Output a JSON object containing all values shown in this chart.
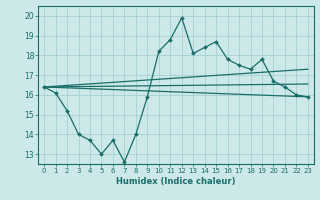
{
  "xlabel": "Humidex (Indice chaleur)",
  "bg_color": "#cce8e8",
  "grid_color": "#aad4d4",
  "line_color": "#1a6e6a",
  "x_values": [
    0,
    1,
    2,
    3,
    4,
    5,
    6,
    7,
    8,
    9,
    10,
    11,
    12,
    13,
    14,
    15,
    16,
    17,
    18,
    19,
    20,
    21,
    22,
    23
  ],
  "main_line": [
    16.4,
    16.1,
    15.2,
    14.0,
    13.7,
    13.0,
    13.7,
    12.6,
    14.0,
    15.9,
    18.2,
    18.8,
    19.9,
    18.1,
    18.4,
    18.7,
    17.8,
    17.5,
    17.3,
    17.8,
    16.7,
    16.4,
    16.0,
    15.9
  ],
  "upper_line_pts": [
    [
      0,
      16.4
    ],
    [
      23,
      17.3
    ]
  ],
  "mid_line_pts": [
    [
      0,
      16.4
    ],
    [
      23,
      16.55
    ]
  ],
  "lower_line_pts": [
    [
      0,
      16.4
    ],
    [
      23,
      15.9
    ]
  ],
  "ylim": [
    12.5,
    20.5
  ],
  "yticks": [
    13,
    14,
    15,
    16,
    17,
    18,
    19,
    20
  ],
  "xticks": [
    0,
    1,
    2,
    3,
    4,
    5,
    6,
    7,
    8,
    9,
    10,
    11,
    12,
    13,
    14,
    15,
    16,
    17,
    18,
    19,
    20,
    21,
    22,
    23
  ]
}
